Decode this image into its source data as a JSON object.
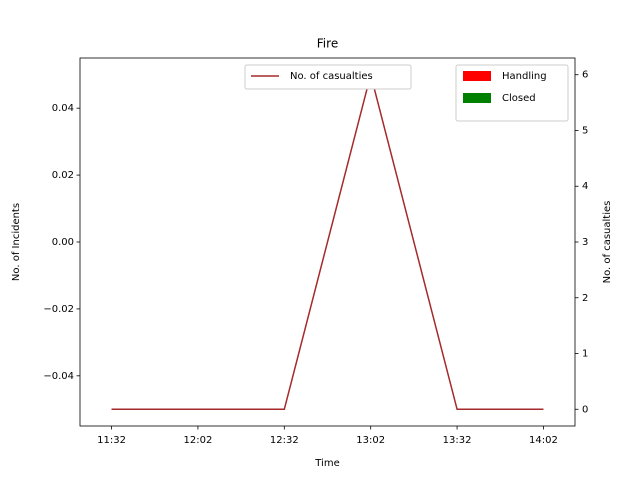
{
  "chart_data": {
    "type": "bar",
    "title": "Fire",
    "x_label": "Time",
    "y_label": "No. of Incidents",
    "y2_label": "No. of casualties",
    "categories": [
      "11:32",
      "12:02",
      "12:32",
      "13:02",
      "13:32",
      "14:02"
    ],
    "series": [
      {
        "name": "Handling",
        "color": "#ff0000",
        "values": [
          0,
          0,
          0,
          0,
          0,
          0
        ]
      },
      {
        "name": "Closed",
        "color": "#008000",
        "values": [
          0,
          0,
          0,
          0,
          0,
          0
        ]
      },
      {
        "name": "No. of casualties",
        "type": "line",
        "color": "#a52a2a",
        "axis": "y2",
        "values": [
          0,
          0,
          0,
          6,
          0,
          0
        ]
      }
    ],
    "ylim": [
      -0.055,
      0.055
    ],
    "yticks": [
      {
        "value": -0.04,
        "label": "−0.04"
      },
      {
        "value": -0.02,
        "label": "−0.02"
      },
      {
        "value": 0,
        "label": "0.00"
      },
      0.02,
      0.04
    ],
    "y2lim": [
      -0.3,
      6.3
    ],
    "y2ticks": [
      0,
      1,
      2,
      3,
      4,
      5,
      6
    ]
  }
}
